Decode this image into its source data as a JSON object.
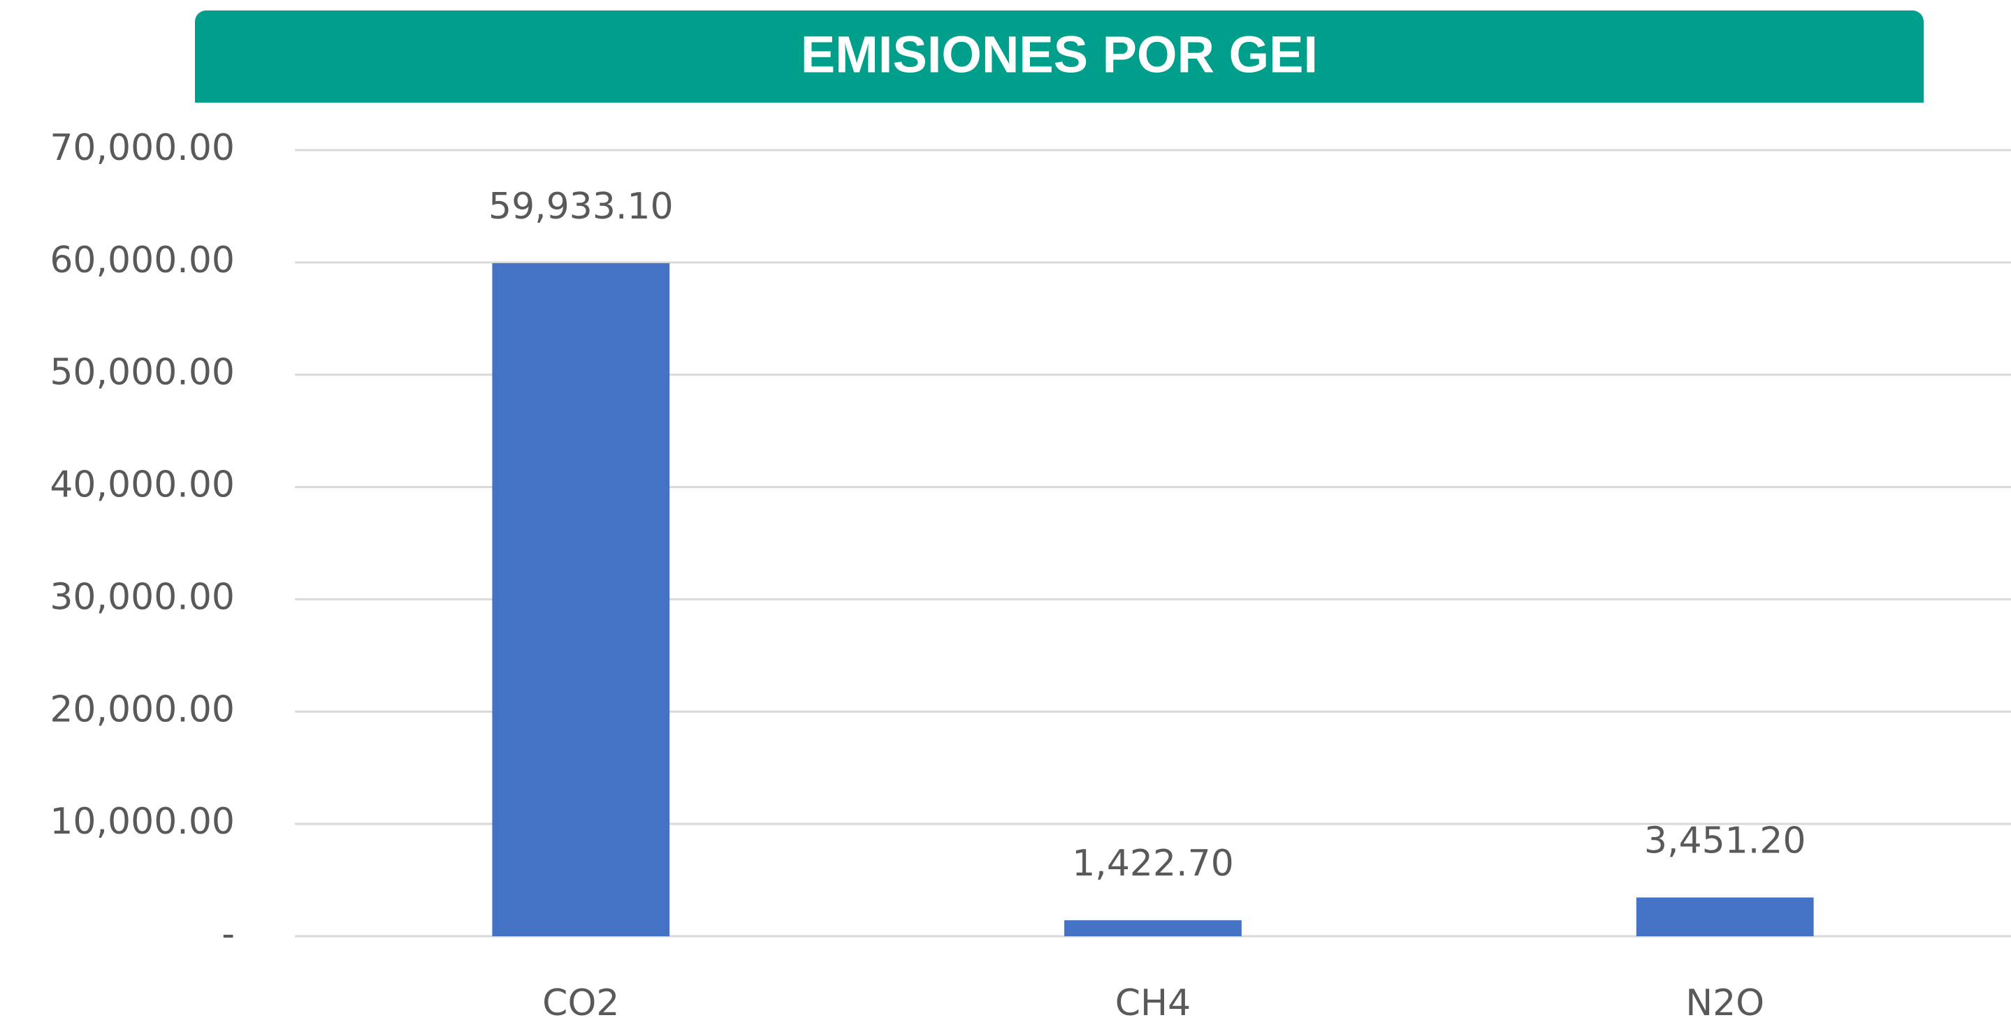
{
  "chart_data": {
    "type": "bar",
    "title": "EMISIONES POR GEI",
    "categories": [
      "CO2",
      "CH4",
      "N2O"
    ],
    "values": [
      59933.1,
      1422.7,
      3451.2
    ],
    "value_labels": [
      "59,933.10",
      "1,422.70",
      "3,451.20"
    ],
    "color": "#4472c4",
    "ylim": [
      0,
      70000
    ],
    "yticks": [
      {
        "value": 0,
        "label": "-"
      },
      {
        "value": 10000,
        "label": "10,000.00"
      },
      {
        "value": 20000,
        "label": "20,000.00"
      },
      {
        "value": 30000,
        "label": "30,000.00"
      },
      {
        "value": 40000,
        "label": "40,000.00"
      },
      {
        "value": 50000,
        "label": "50,000.00"
      },
      {
        "value": 60000,
        "label": "60,000.00"
      },
      {
        "value": 70000,
        "label": "70,000.00"
      }
    ],
    "grid": true
  }
}
